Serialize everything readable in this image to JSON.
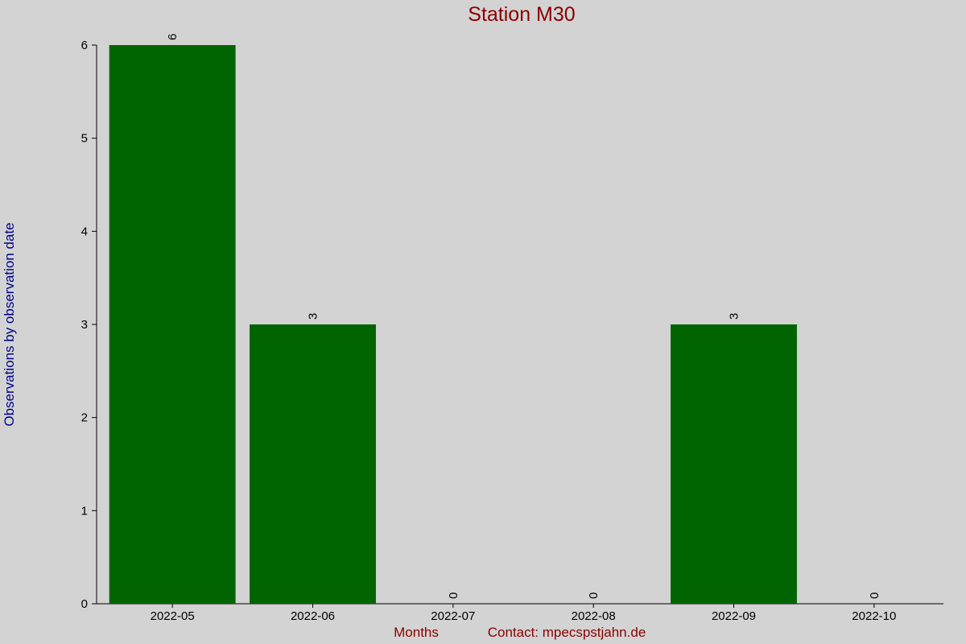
{
  "chart_data": {
    "type": "bar",
    "title": "Station M30",
    "y_label": "Observations by observation date",
    "x_label": "Months",
    "footer": "Contact: mpecspstjahn.de",
    "categories": [
      "2022-05",
      "2022-06",
      "2022-07",
      "2022-08",
      "2022-09",
      "2022-10"
    ],
    "values": [
      6,
      3,
      0,
      0,
      3,
      0
    ],
    "color": "#006400",
    "ylim": [
      0,
      6
    ],
    "yticks": [
      0,
      1,
      2,
      3,
      4,
      5,
      6
    ]
  }
}
